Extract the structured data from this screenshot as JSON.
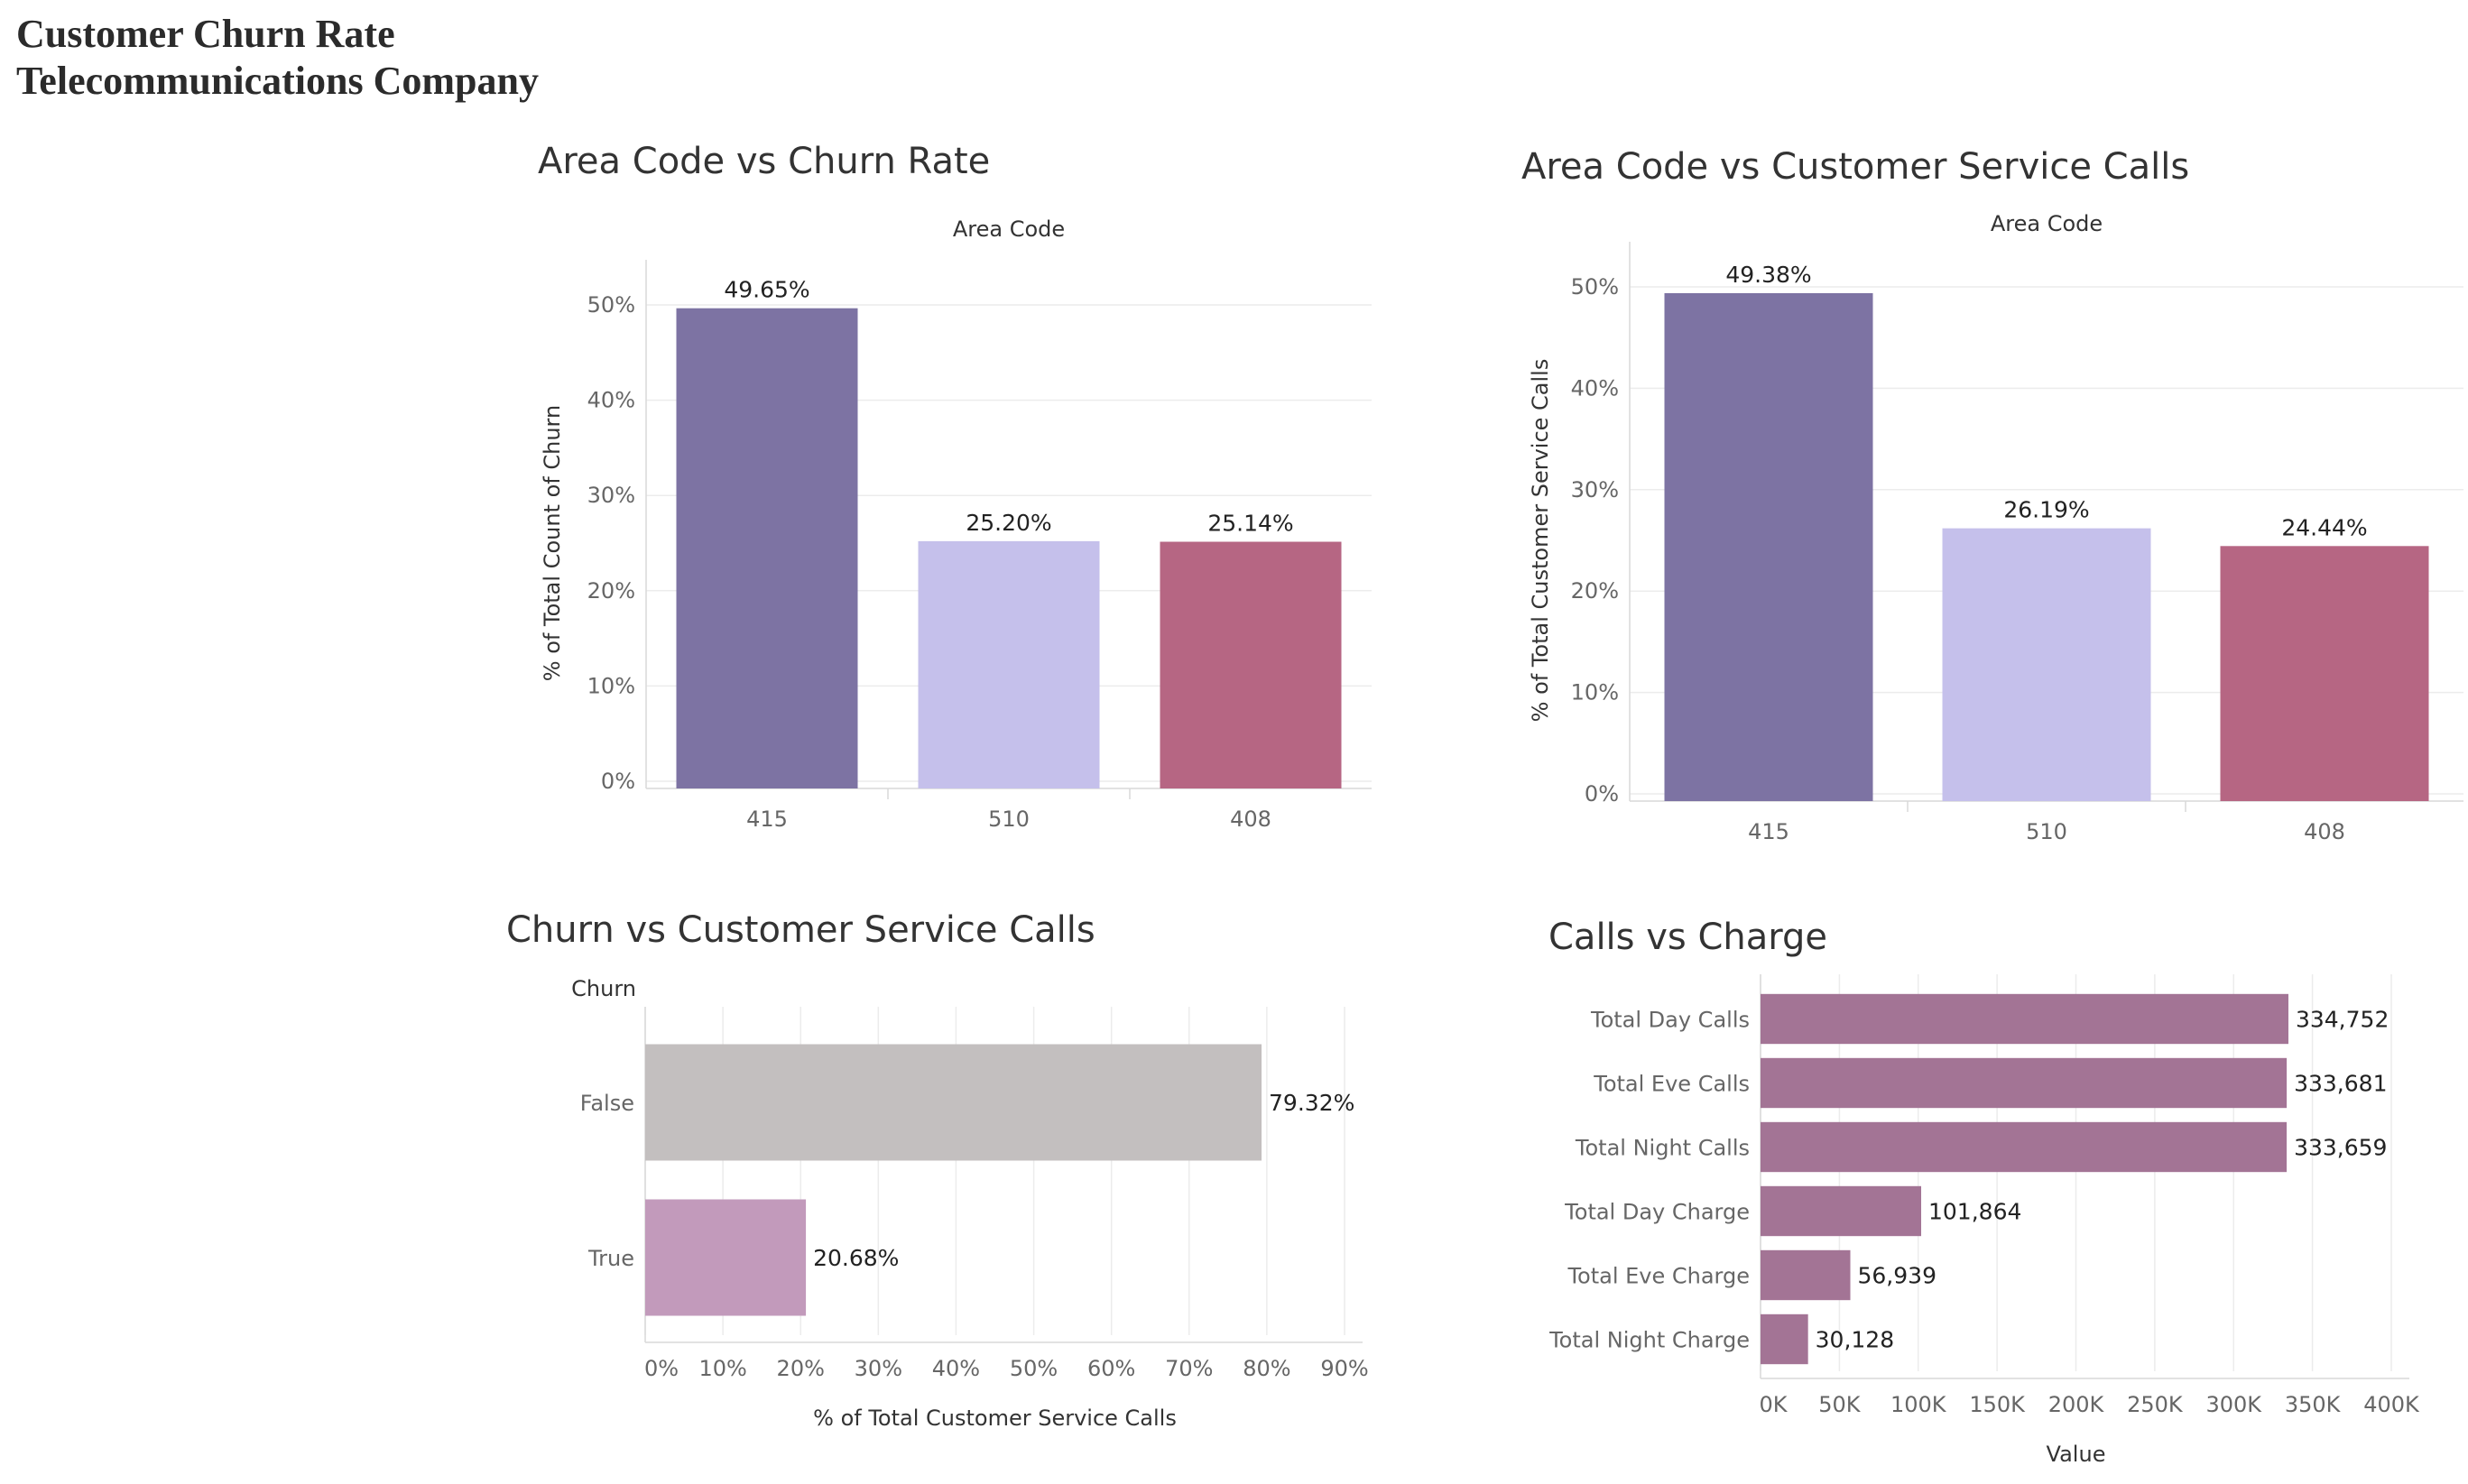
{
  "page": {
    "title_line1": "Customer Churn Rate",
    "title_line2": "Telecommunications Company"
  },
  "chart_data": [
    {
      "type": "bar",
      "title": "Area Code vs Churn Rate",
      "header": "Area Code",
      "ylabel": "% of Total Count of Churn",
      "categories": [
        "415",
        "510",
        "408"
      ],
      "values": [
        49.65,
        25.2,
        25.14
      ],
      "value_labels": [
        "49.65%",
        "25.20%",
        "25.14%"
      ],
      "colors": [
        "#7d73a3",
        "#c5c0eb",
        "#b66683"
      ],
      "yticks": [
        "0%",
        "10%",
        "20%",
        "30%",
        "40%",
        "50%"
      ],
      "ylim": [
        0,
        50
      ],
      "grid": true
    },
    {
      "type": "bar",
      "title": "Area Code vs Customer Service Calls",
      "header": "Area Code",
      "ylabel": "% of Total Customer Service Calls",
      "categories": [
        "415",
        "510",
        "408"
      ],
      "values": [
        49.38,
        26.19,
        24.44
      ],
      "value_labels": [
        "49.38%",
        "26.19%",
        "24.44%"
      ],
      "colors": [
        "#7d73a3",
        "#c5c0eb",
        "#b66683"
      ],
      "yticks": [
        "0%",
        "10%",
        "20%",
        "30%",
        "40%",
        "50%"
      ],
      "ylim": [
        0,
        50
      ],
      "grid": true
    },
    {
      "type": "bar",
      "orientation": "horizontal",
      "title": "Churn vs Customer Service Calls",
      "header": "Churn",
      "xlabel": "% of Total Customer Service Calls",
      "categories": [
        "False",
        "True"
      ],
      "values": [
        79.32,
        20.68
      ],
      "value_labels": [
        "79.32%",
        "20.68%"
      ],
      "colors": [
        "#c3bfbf",
        "#c29abb"
      ],
      "xticks": [
        "0%",
        "10%",
        "20%",
        "30%",
        "40%",
        "50%",
        "60%",
        "70%",
        "80%",
        "90%"
      ],
      "xlim": [
        0,
        90
      ],
      "grid": true
    },
    {
      "type": "bar",
      "orientation": "horizontal",
      "title": "Calls vs Charge",
      "xlabel": "Value",
      "categories": [
        "Total Day Calls",
        "Total Eve Calls",
        "Total Night Calls",
        "Total Day Charge",
        "Total Eve Charge",
        "Total Night Charge"
      ],
      "values": [
        334752,
        333681,
        333659,
        101864,
        56939,
        30128
      ],
      "value_labels": [
        "334,752",
        "333,681",
        "333,659",
        "101,864",
        "56,939",
        "30,128"
      ],
      "colors": [
        "#a37495"
      ],
      "xticks": [
        "0K",
        "50K",
        "100K",
        "150K",
        "200K",
        "250K",
        "300K",
        "350K",
        "400K"
      ],
      "xlim": [
        0,
        400000
      ],
      "grid": true
    }
  ]
}
